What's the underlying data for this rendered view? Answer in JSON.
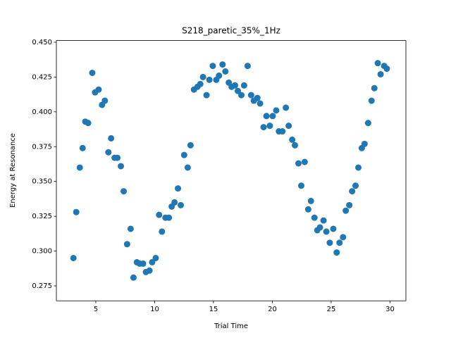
{
  "chart_data": {
    "type": "scatter",
    "title": "S218_paretic_35%_1Hz",
    "x_label": "Trial Time",
    "y_label": "Energy at Resonance",
    "color": "#1f77b4",
    "x": [
      3.1,
      3.34,
      3.64,
      3.88,
      4.11,
      4.35,
      4.7,
      4.94,
      5.24,
      5.53,
      5.77,
      6.07,
      6.3,
      6.6,
      6.83,
      7.13,
      7.37,
      7.66,
      7.96,
      8.2,
      8.49,
      8.73,
      9.02,
      9.26,
      9.56,
      9.79,
      10.09,
      10.38,
      10.62,
      10.92,
      11.21,
      11.45,
      11.69,
      11.98,
      12.22,
      12.51,
      12.81,
      13.05,
      13.34,
      13.64,
      13.88,
      14.11,
      14.41,
      14.65,
      14.94,
      15.24,
      15.47,
      15.77,
      16.01,
      16.3,
      16.54,
      16.83,
      17.07,
      17.37,
      17.6,
      17.9,
      18.2,
      18.43,
      18.73,
      18.96,
      19.26,
      19.5,
      19.79,
      20.03,
      20.33,
      20.56,
      20.86,
      21.15,
      21.39,
      21.69,
      21.92,
      22.22,
      22.46,
      22.75,
      23.05,
      23.28,
      23.58,
      23.82,
      24.05,
      24.35,
      24.59,
      24.88,
      25.18,
      25.47,
      25.71,
      26.01,
      26.24,
      26.54,
      26.78,
      27.07,
      27.31,
      27.6,
      27.84,
      28.14,
      28.43,
      28.67,
      28.96,
      29.2,
      29.5,
      29.73
    ],
    "values": [
      0.295,
      0.328,
      0.36,
      0.374,
      0.393,
      0.392,
      0.428,
      0.414,
      0.416,
      0.405,
      0.408,
      0.371,
      0.381,
      0.367,
      0.367,
      0.361,
      0.343,
      0.305,
      0.316,
      0.281,
      0.292,
      0.291,
      0.291,
      0.285,
      0.286,
      0.292,
      0.295,
      0.326,
      0.314,
      0.324,
      0.324,
      0.332,
      0.335,
      0.345,
      0.333,
      0.369,
      0.36,
      0.376,
      0.416,
      0.418,
      0.42,
      0.425,
      0.412,
      0.423,
      0.433,
      0.423,
      0.426,
      0.434,
      0.429,
      0.421,
      0.418,
      0.419,
      0.415,
      0.412,
      0.419,
      0.433,
      0.412,
      0.408,
      0.41,
      0.406,
      0.389,
      0.397,
      0.39,
      0.397,
      0.401,
      0.386,
      0.386,
      0.403,
      0.39,
      0.38,
      0.376,
      0.363,
      0.347,
      0.364,
      0.33,
      0.336,
      0.324,
      0.315,
      0.317,
      0.322,
      0.314,
      0.306,
      0.316,
      0.299,
      0.306,
      0.31,
      0.329,
      0.333,
      0.343,
      0.347,
      0.36,
      0.374,
      0.377,
      0.392,
      0.408,
      0.417,
      0.435,
      0.427,
      0.433,
      0.431
    ],
    "xlim": [
      1.65,
      31.35
    ],
    "xticks": [
      5,
      10,
      15,
      20,
      25,
      30
    ],
    "ylim": [
      0.2643,
      0.4512
    ],
    "yticks": [
      {
        "value": 0.275,
        "label": "0.275"
      },
      {
        "value": 0.3,
        "label": "0.300"
      },
      {
        "value": 0.325,
        "label": "0.325"
      },
      {
        "value": 0.35,
        "label": "0.350"
      },
      {
        "value": 0.375,
        "label": "0.375"
      },
      {
        "value": 0.4,
        "label": "0.400"
      },
      {
        "value": 0.425,
        "label": "0.425"
      },
      {
        "value": 0.45,
        "label": "0.450"
      }
    ],
    "grid": false
  }
}
